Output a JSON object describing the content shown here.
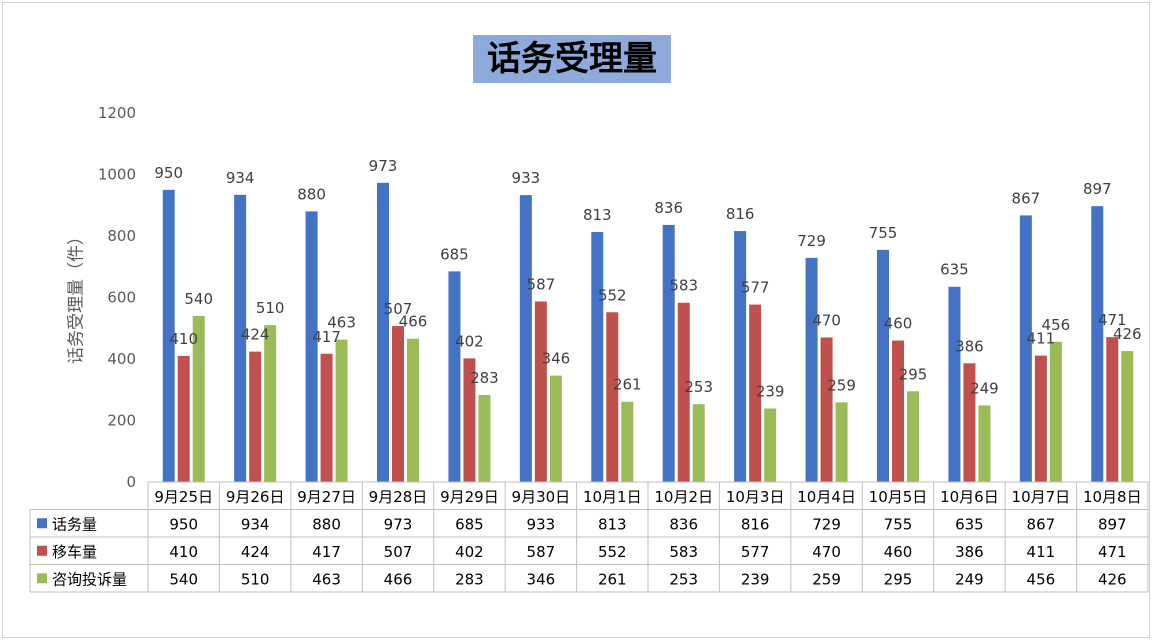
{
  "chart_data": {
    "type": "bar",
    "title": "话务受理量",
    "ylabel": "话务受理量（件）",
    "ylim": [
      0,
      1200
    ],
    "yticks": [
      "0",
      "200",
      "400",
      "600",
      "800",
      "1000",
      "1200"
    ],
    "categories": [
      "9月25日",
      "9月26日",
      "9月27日",
      "9月28日",
      "9月29日",
      "9月30日",
      "10月1日",
      "10月2日",
      "10月3日",
      "10月4日",
      "10月5日",
      "10月6日",
      "10月7日",
      "10月8日"
    ],
    "series": [
      {
        "name": "话务量",
        "color": "#4472c4",
        "values": [
          950,
          934,
          880,
          973,
          685,
          933,
          813,
          836,
          816,
          729,
          755,
          635,
          867,
          897
        ]
      },
      {
        "name": "移车量",
        "color": "#c0504d",
        "values": [
          410,
          424,
          417,
          507,
          402,
          587,
          552,
          583,
          577,
          470,
          460,
          386,
          411,
          471
        ]
      },
      {
        "name": "咨询投诉量",
        "color": "#9bbb59",
        "values": [
          540,
          510,
          463,
          466,
          283,
          346,
          261,
          253,
          239,
          259,
          295,
          249,
          456,
          426
        ]
      }
    ],
    "grid": false,
    "legend": "data-table"
  }
}
